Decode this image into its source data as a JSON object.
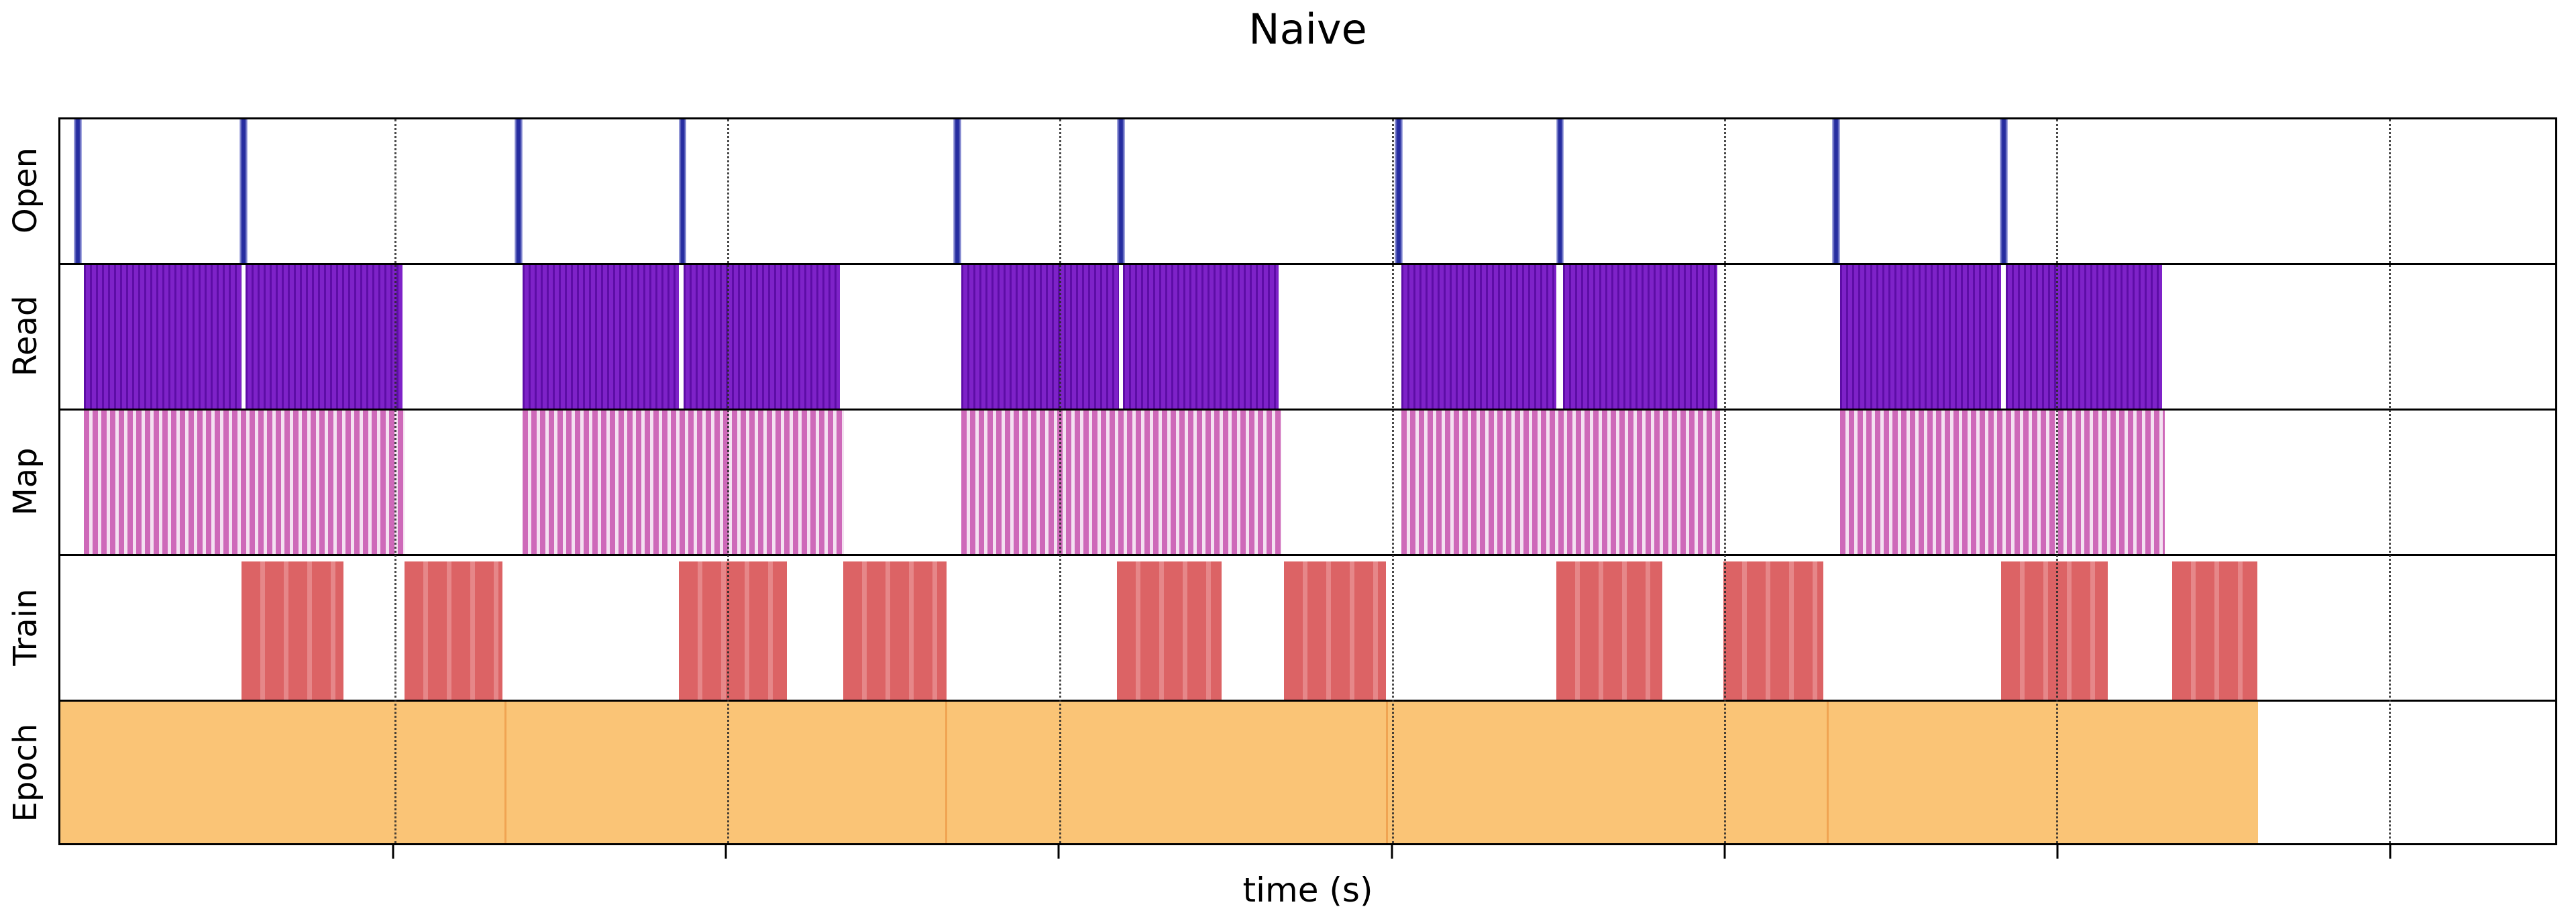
{
  "title": "Naive",
  "x_axis_label": "time (s)",
  "colors": {
    "background": "#ffffff",
    "text": "#000000",
    "axis_line": "#000000",
    "grid_line": "#2a2a2a",
    "open_bar": "#262da0",
    "open_edge": "#b9bde9",
    "read_bar": "#7e22c8",
    "read_stripe": "#5d0da6",
    "map_bar": "#ce69b9",
    "map_stripe": "#f4e1f1",
    "train_bar": "#dc6365",
    "train_stripe": "#e68789",
    "epoch_bar": "#fac476",
    "epoch_seam": "#f0a452"
  },
  "chart_data": {
    "type": "broken_barh_timeline",
    "title": "Naive",
    "xlabel": "time (s)",
    "x_axis": {
      "units": "fraction_of_visible_time_axis",
      "range": [
        0,
        1
      ],
      "tick_positions": [
        0.134,
        0.2672,
        0.4004,
        0.5337,
        0.6668,
        0.8,
        0.9332
      ],
      "tick_labels": [],
      "grid_style": "dotted_vertical",
      "note": "x ticks are drawn but have no numeric labels in the figure"
    },
    "legend": "none",
    "rows": [
      {
        "label": "Open",
        "color": "#262da0",
        "style": "thin_spikes",
        "intervals": [
          [
            0.0054,
            0.0086
          ],
          [
            0.0717,
            0.0749
          ],
          [
            0.182,
            0.1852
          ],
          [
            0.2478,
            0.251
          ],
          [
            0.3579,
            0.3611
          ],
          [
            0.4236,
            0.4268
          ],
          [
            0.5348,
            0.538
          ],
          [
            0.5995,
            0.6027
          ],
          [
            0.7101,
            0.7133
          ],
          [
            0.7774,
            0.7806
          ]
        ]
      },
      {
        "label": "Read",
        "color": "#7e22c8",
        "style": "dense_striped_block",
        "intervals": [
          [
            0.0094,
            0.0725
          ],
          [
            0.0741,
            0.1372
          ],
          [
            0.1852,
            0.248
          ],
          [
            0.2499,
            0.3125
          ],
          [
            0.3611,
            0.4244
          ],
          [
            0.426,
            0.4883
          ],
          [
            0.5374,
            0.5997
          ],
          [
            0.6022,
            0.6642
          ],
          [
            0.7133,
            0.778
          ],
          [
            0.7799,
            0.8424
          ]
        ]
      },
      {
        "label": "Map",
        "color": "#ce69b9",
        "style": "pink_white_striped_block",
        "intervals": [
          [
            0.0094,
            0.138
          ],
          [
            0.1852,
            0.3141
          ],
          [
            0.3611,
            0.4894
          ],
          [
            0.5374,
            0.6653
          ],
          [
            0.7133,
            0.8435
          ]
        ]
      },
      {
        "label": "Train",
        "color": "#dc6365",
        "style": "striped_block",
        "intervals": [
          [
            0.0725,
            0.1135
          ],
          [
            0.138,
            0.1772
          ],
          [
            0.248,
            0.2913
          ],
          [
            0.3138,
            0.3551
          ],
          [
            0.4236,
            0.4655
          ],
          [
            0.4904,
            0.5313
          ],
          [
            0.5997,
            0.6421
          ],
          [
            0.6666,
            0.7066
          ],
          [
            0.778,
            0.8207
          ],
          [
            0.8464,
            0.8805
          ]
        ]
      },
      {
        "label": "Epoch",
        "color": "#fac476",
        "style": "solid_block_with_seams",
        "intervals": [
          [
            0.0,
            0.178
          ],
          [
            0.178,
            0.3546
          ],
          [
            0.3546,
            0.5313
          ],
          [
            0.5313,
            0.7079
          ],
          [
            0.7079,
            0.8808
          ]
        ]
      }
    ]
  }
}
